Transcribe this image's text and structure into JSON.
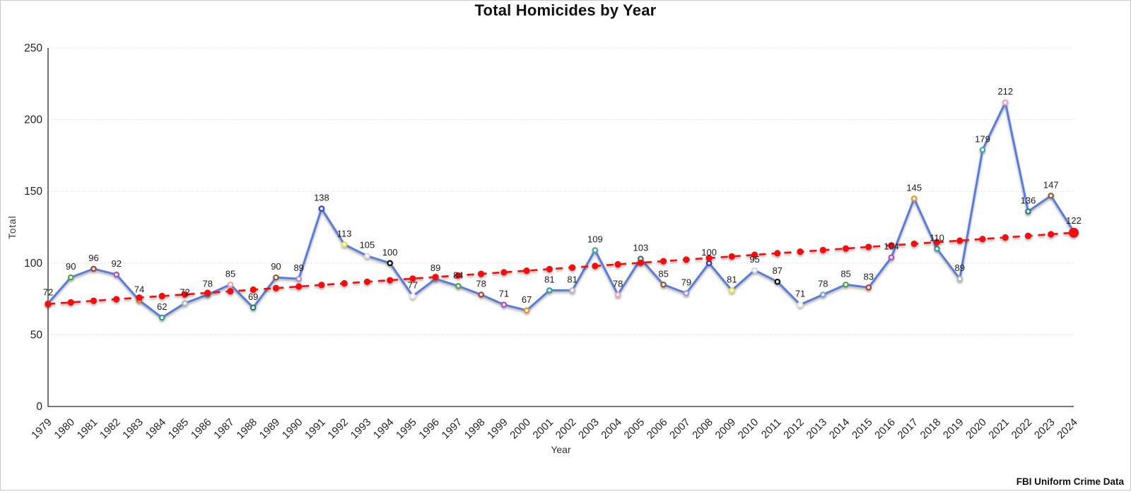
{
  "chart_data": {
    "type": "line",
    "title": "Total Homicides by Year",
    "xlabel": "Year",
    "ylabel": "Total",
    "source_note": "FBI Uniform Crime Data",
    "ylim": [
      0,
      250
    ],
    "yticks": [
      0,
      50,
      100,
      150,
      200,
      250
    ],
    "grid": true,
    "legend_position": "none",
    "x": [
      "1979",
      "1980",
      "1981",
      "1982",
      "1983",
      "1984",
      "1985",
      "1986",
      "1987",
      "1988",
      "1989",
      "1990",
      "1991",
      "1992",
      "1993",
      "1994",
      "1995",
      "1996",
      "1997",
      "1998",
      "1999",
      "2000",
      "2001",
      "2002",
      "2003",
      "2004",
      "2005",
      "2006",
      "2007",
      "2008",
      "2009",
      "2010",
      "2011",
      "2012",
      "2013",
      "2014",
      "2015",
      "2016",
      "2017",
      "2018",
      "2019",
      "2020",
      "2021",
      "2022",
      "2023",
      "2024"
    ],
    "series": [
      {
        "name": "Total homicides",
        "type": "line",
        "color": "#5b7cd6",
        "values": [
          72,
          90,
          96,
          92,
          74,
          62,
          72,
          78,
          85,
          69,
          90,
          89,
          138,
          113,
          105,
          100,
          77,
          89,
          84,
          78,
          71,
          67,
          81,
          81,
          109,
          78,
          103,
          85,
          79,
          100,
          81,
          95,
          87,
          71,
          78,
          85,
          83,
          104,
          145,
          110,
          89,
          179,
          212,
          136,
          147,
          122
        ]
      },
      {
        "name": "Linear trend",
        "type": "dashed-line-with-dots",
        "color": "#f50d0d",
        "trend_start": 71.5,
        "trend_end": 121.2
      }
    ],
    "point_colors": [
      "#6d9eeb",
      "#4ba446",
      "#b23b34",
      "#b44bc4",
      "#e8912d",
      "#2d9d96",
      "#b8b8b8",
      "#4aa79b",
      "#f2a0b4",
      "#277d6e",
      "#8e5a2d",
      "#a294e0",
      "#2c47cc",
      "#e3e04e",
      "#d8d4ee",
      "#111111",
      "#e8e8e8",
      "#6d9eeb",
      "#4ba446",
      "#b23b34",
      "#b44bc4",
      "#e8912d",
      "#2d9d96",
      "#b8b8b8",
      "#4aa79b",
      "#f2a0b4",
      "#277d6e",
      "#8e5a2d",
      "#a294e0",
      "#2c47cc",
      "#e3e04e",
      "#d8d4ee",
      "#111111",
      "#e8e8e8",
      "#6d9eeb",
      "#4ba446",
      "#b23b34",
      "#b44bc4",
      "#e8912d",
      "#2d9d96",
      "#b8b8b8",
      "#4aa79b",
      "#f2a0b4",
      "#277d6e",
      "#8e5a2d",
      "#a294e0"
    ],
    "colors": {
      "grid": "#d9d9d9",
      "axis": "#2b2b2b",
      "tick_text": "#222222",
      "label_text": "#1a1a1a"
    }
  }
}
